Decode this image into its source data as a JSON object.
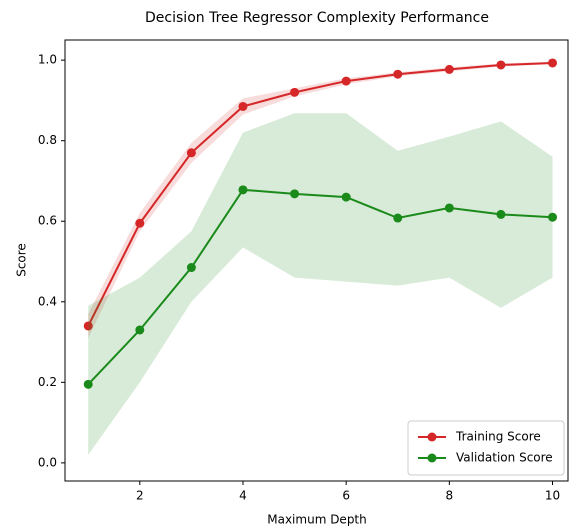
{
  "chart_data": {
    "type": "line",
    "title": "Decision Tree Regressor Complexity Performance",
    "x_label": "Maximum Depth",
    "y_label": "Score",
    "x": [
      1,
      2,
      3,
      4,
      5,
      6,
      7,
      8,
      9,
      10
    ],
    "series": [
      {
        "name": "Training Score",
        "color": "#d62728",
        "values": [
          0.34,
          0.595,
          0.77,
          0.885,
          0.92,
          0.948,
          0.965,
          0.977,
          0.988,
          0.993
        ],
        "lower": [
          0.31,
          0.575,
          0.745,
          0.865,
          0.91,
          0.94,
          0.96,
          0.972,
          0.984,
          0.99
        ],
        "upper": [
          0.37,
          0.62,
          0.795,
          0.905,
          0.93,
          0.955,
          0.97,
          0.982,
          0.992,
          0.996
        ]
      },
      {
        "name": "Validation Score",
        "color": "#1a8a1a",
        "values": [
          0.195,
          0.33,
          0.485,
          0.678,
          0.668,
          0.66,
          0.608,
          0.633,
          0.617,
          0.61
        ],
        "lower": [
          0.02,
          0.2,
          0.4,
          0.535,
          0.46,
          0.45,
          0.44,
          0.46,
          0.385,
          0.46
        ],
        "upper": [
          0.39,
          0.46,
          0.575,
          0.82,
          0.868,
          0.868,
          0.775,
          0.81,
          0.848,
          0.76
        ]
      }
    ],
    "xlim": [
      0.55,
      10.3
    ],
    "ylim": [
      -0.045,
      1.05
    ],
    "xticks": [
      2,
      4,
      6,
      8,
      10
    ],
    "yticks": [
      {
        "value": 0,
        "label": "0.0"
      },
      0.2,
      0.4,
      0.6,
      0.8,
      {
        "value": 1,
        "label": "1.0"
      }
    ],
    "legend": "lower right"
  }
}
